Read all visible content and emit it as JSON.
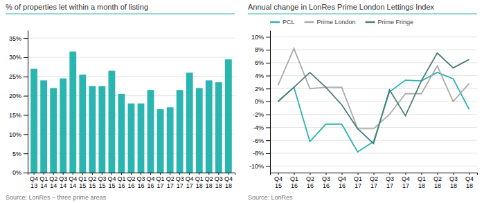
{
  "chart_data": [
    {
      "type": "bar",
      "title": "% of properties let within a month of listing",
      "annotations": [
        "Source: LonRes – three prime areas"
      ],
      "categories": [
        "Q4\n13",
        "Q1\n14",
        "Q2\n14",
        "Q3\n14",
        "Q4\n14",
        "Q1\n15",
        "Q2\n15",
        "Q3\n15",
        "Q4\n15",
        "Q1\n16",
        "Q2\n16",
        "Q3\n16",
        "Q4\n16",
        "Q1\n17",
        "Q2\n17",
        "Q3\n17",
        "Q4\n17",
        "Q1\n18",
        "Q2\n18",
        "Q3\n18",
        "Q4\n18"
      ],
      "values": [
        27,
        24,
        22,
        24.5,
        31.5,
        25.5,
        22.5,
        22.5,
        26.5,
        20.5,
        18,
        18,
        21.5,
        16.5,
        17,
        21.5,
        26,
        22,
        24,
        23.5,
        29.5
      ],
      "color": "#2bb5b0",
      "ylim": [
        0,
        37
      ],
      "yticks": [
        {
          "value": 0,
          "label": "0%"
        },
        {
          "value": 5,
          "label": "5%"
        },
        {
          "value": 10,
          "label": "10%"
        },
        {
          "value": 15,
          "label": "15%"
        },
        {
          "value": 20,
          "label": "20%"
        },
        {
          "value": 25,
          "label": "25%"
        },
        {
          "value": 30,
          "label": "30%"
        },
        {
          "value": 35,
          "label": "35%"
        }
      ],
      "grid": true
    },
    {
      "type": "line",
      "title": "Annual change in LonRes Prime London Lettings Index",
      "annotations": [
        "Source: LonRes"
      ],
      "categories": [
        "Q4\n15",
        "Q1\n16",
        "Q2\n16",
        "Q3\n16",
        "Q4\n16",
        "Q1\n17",
        "Q2\n17",
        "Q3\n17",
        "Q4\n17",
        "Q1\n18",
        "Q2\n18",
        "Q3\n18",
        "Q4\n18"
      ],
      "series": [
        {
          "name": "PCL",
          "color": "#2bb5b0",
          "values": [
            0.0,
            2.2,
            -6.2,
            -3.5,
            -3.5,
            -7.8,
            -6.2,
            1.5,
            3.3,
            3.2,
            4.5,
            3.5,
            -1.2
          ]
        },
        {
          "name": "Prime London",
          "color": "#aaaaaa",
          "values": [
            2.5,
            8.2,
            2.0,
            2.2,
            2.2,
            -4.2,
            -4.2,
            -2.0,
            1.2,
            1.2,
            5.5,
            0.0,
            2.8
          ]
        },
        {
          "name": "Prime Fringe",
          "color": "#4a7c7a",
          "values": [
            0.0,
            2.2,
            4.5,
            2.2,
            -0.5,
            -4.2,
            -6.5,
            1.8,
            -2.2,
            3.2,
            7.5,
            5.2,
            6.5
          ]
        }
      ],
      "ylim": [
        -11,
        11
      ],
      "yticks": [
        {
          "value": -10,
          "label": "-10%"
        },
        {
          "value": -8,
          "label": "-8%"
        },
        {
          "value": -6,
          "label": "-6%"
        },
        {
          "value": -4,
          "label": "-4%"
        },
        {
          "value": -2,
          "label": "-2%"
        },
        {
          "value": 0,
          "label": "0%"
        },
        {
          "value": 2,
          "label": "2%"
        },
        {
          "value": 4,
          "label": "4%"
        },
        {
          "value": 6,
          "label": "6%"
        },
        {
          "value": 8,
          "label": "8%"
        },
        {
          "value": 10,
          "label": "10%"
        }
      ],
      "grid": true,
      "legend": "top"
    }
  ]
}
